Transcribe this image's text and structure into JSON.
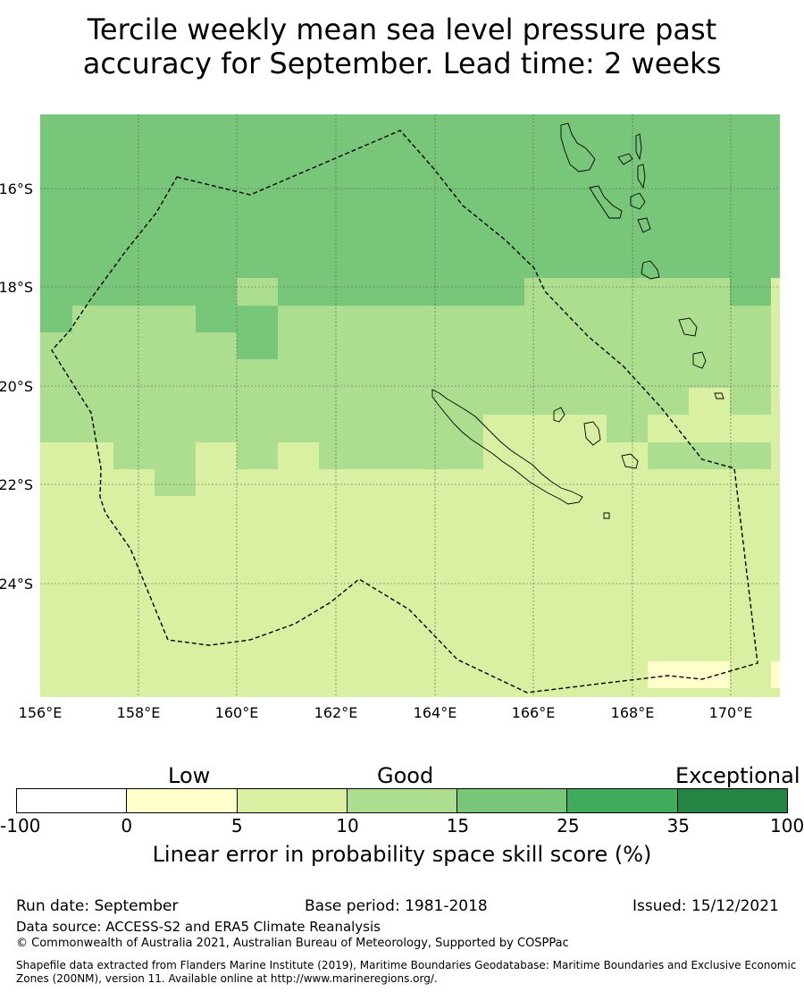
{
  "title_line1": "Tercile weekly mean sea level pressure past",
  "title_line2": "accuracy for September. Lead time: 2 weeks",
  "map": {
    "lon_ticks": [
      "156°E",
      "158°E",
      "160°E",
      "162°E",
      "164°E",
      "166°E",
      "168°E",
      "170°E"
    ],
    "lat_ticks": [
      "16°S",
      "18°S",
      "20°S",
      "22°S",
      "24°S"
    ]
  },
  "colorbar": {
    "categories": [
      "Low",
      "Good",
      "Exceptional"
    ],
    "ticks": [
      "-100",
      "0",
      "5",
      "10",
      "15",
      "25",
      "35",
      "100"
    ],
    "colors": [
      "#ffffff",
      "#ffffcc",
      "#d9f0a3",
      "#addd8e",
      "#78c679",
      "#41ab5d",
      "#238443"
    ],
    "title": "Linear error in probability space skill score (%)"
  },
  "footer": {
    "run_date": "Run date: September",
    "base_period": "Base period: 1981-2018",
    "issued": "Issued: 15/12/2021",
    "data_source": "Data source: ACCESS-S2 and ERA5 Climate Reanalysis",
    "copyright": "© Commonwealth of Australia 2021, Australian Bureau of Meteorology, Supported by COSPPac",
    "shapefile_line1": "Shapefile data extracted from Flanders Marine Institute (2019), Maritime Boundaries Geodatabase: Maritime Boundaries and Exclusive Economic",
    "shapefile_line2": "Zones (200NM), version 11. Available online at http://www.marineregions.org/."
  }
}
